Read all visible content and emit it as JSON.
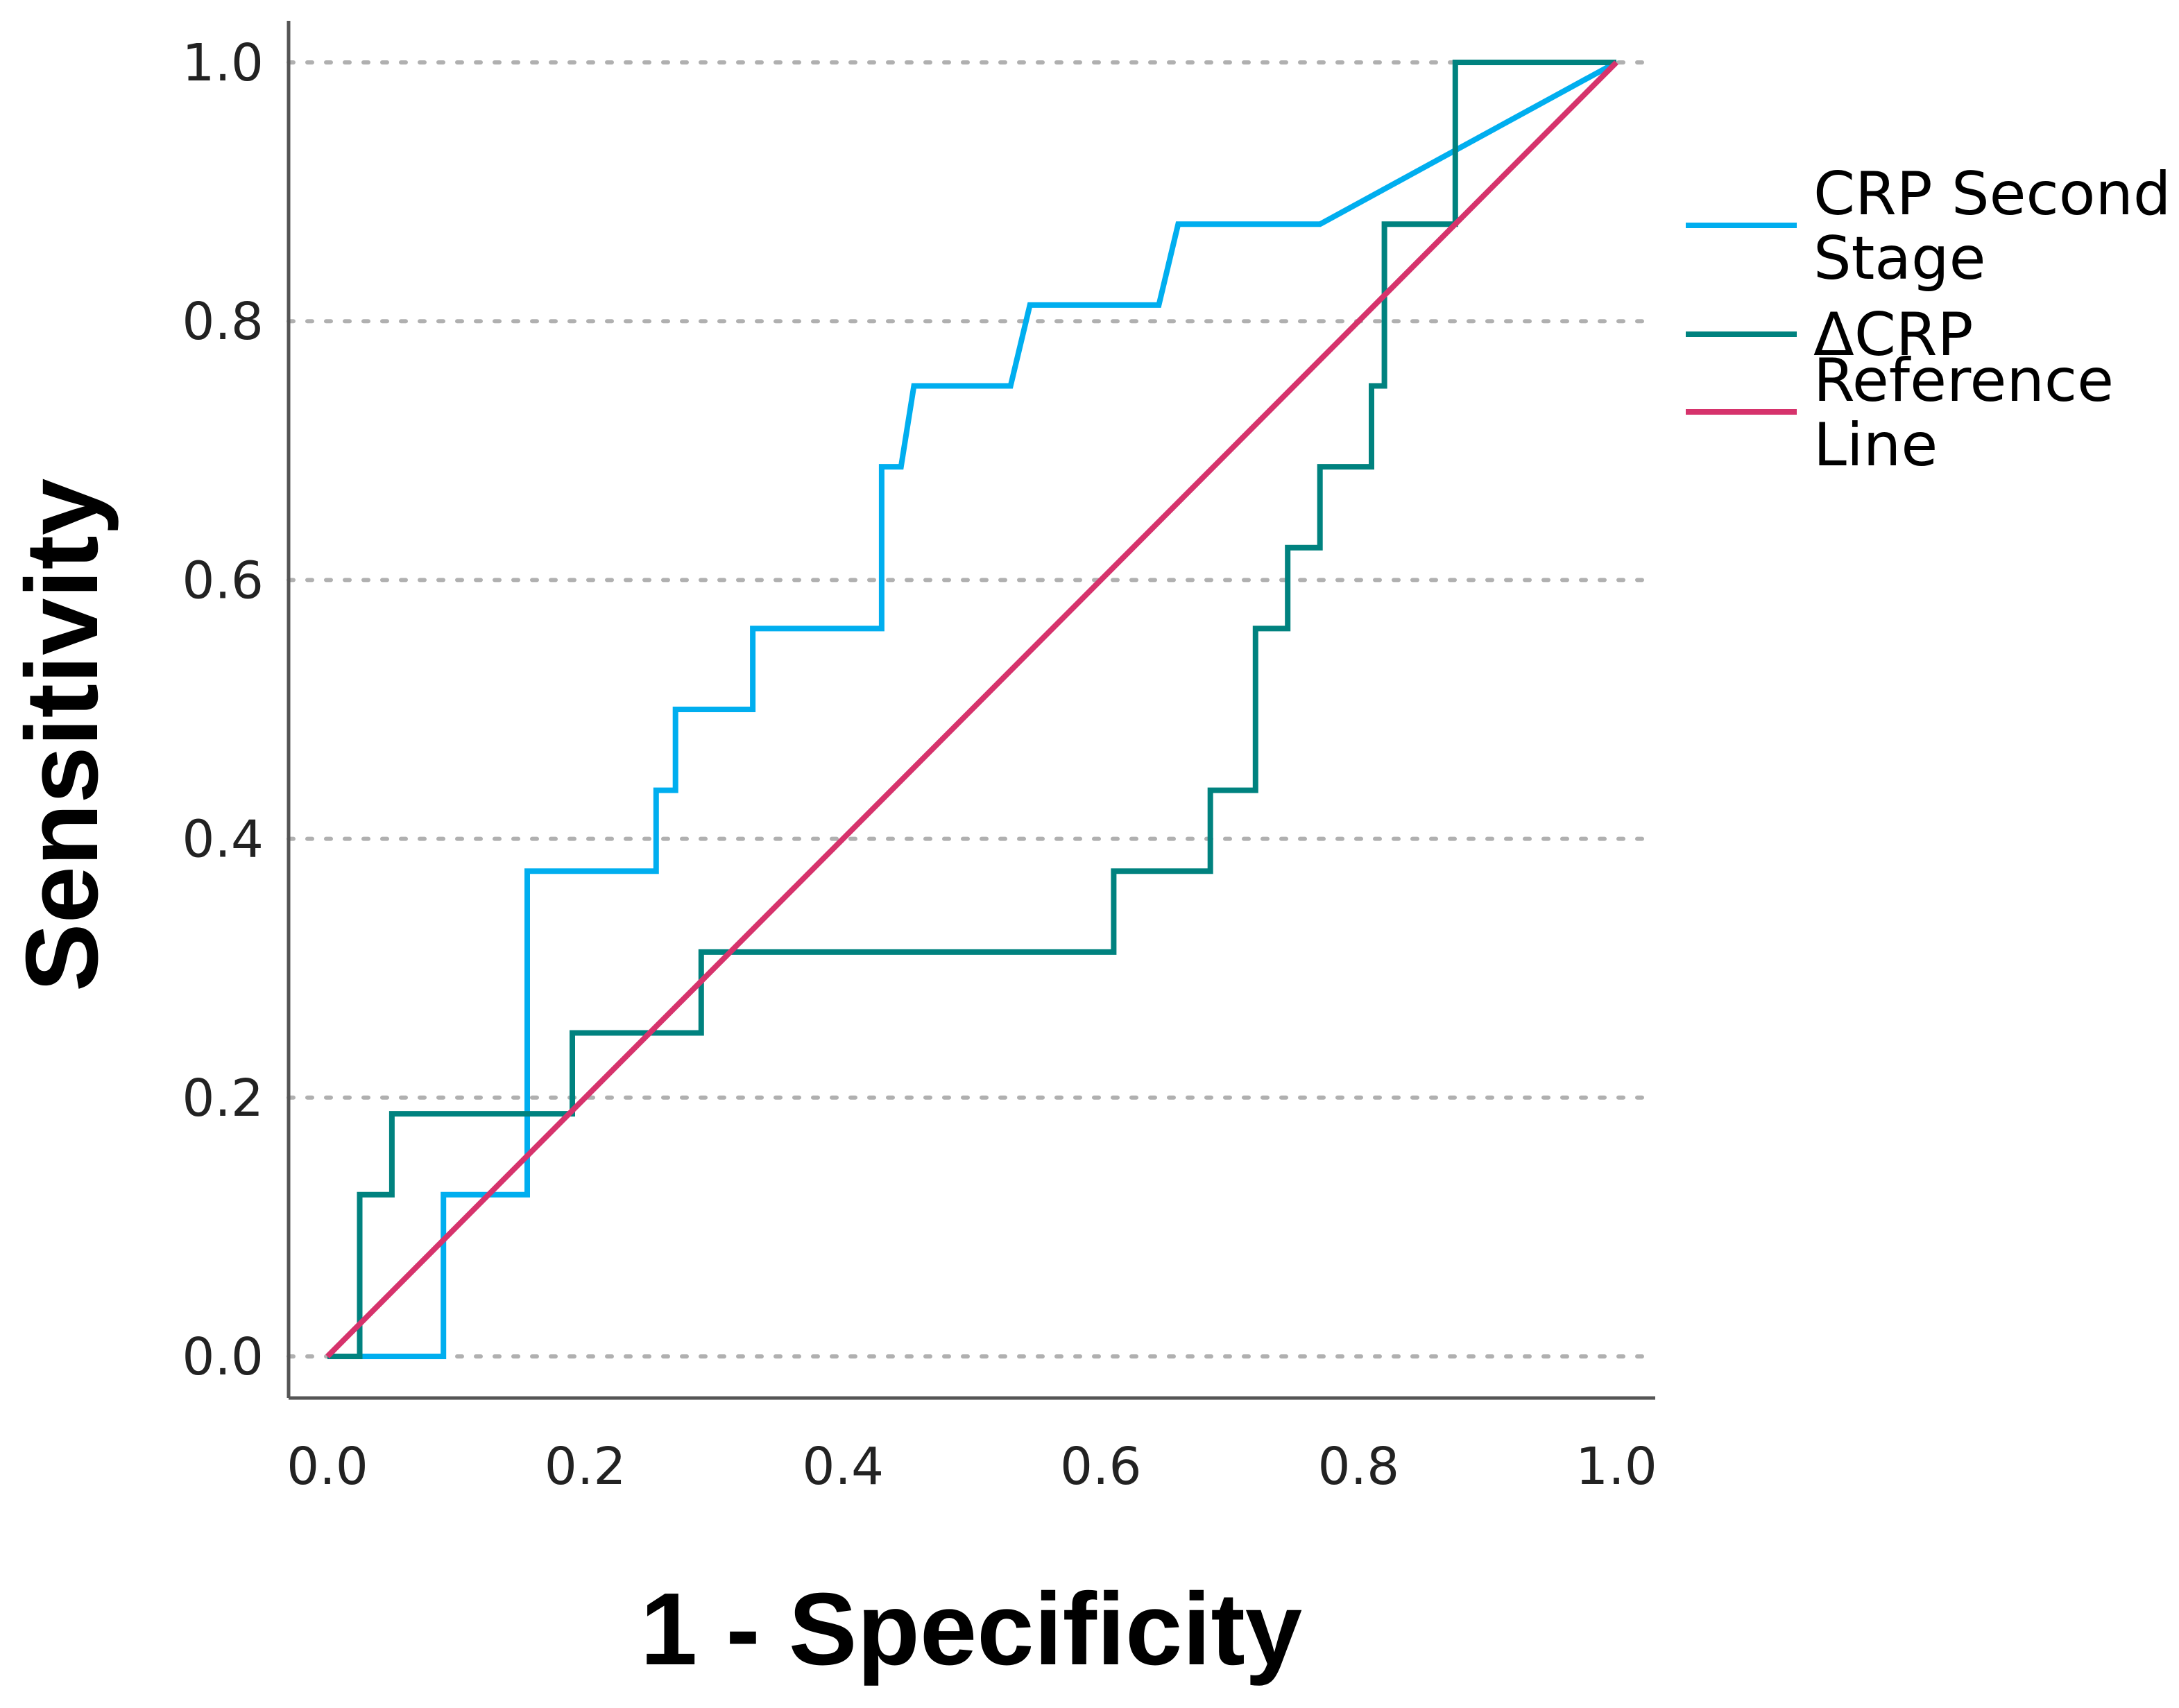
{
  "chart_data": {
    "type": "line",
    "xlabel": "1 - Specificity",
    "ylabel": "Sensitivity",
    "xlim": [
      0.0,
      1.0
    ],
    "ylim": [
      0.0,
      1.0
    ],
    "grid": "horizontal dotted",
    "x_ticks": [
      "0.0",
      "0.2",
      "0.4",
      "0.6",
      "0.8",
      "1.0"
    ],
    "y_ticks": [
      "0.0",
      "0.2",
      "0.4",
      "0.6",
      "0.8",
      "1.0"
    ],
    "legend_position": "right",
    "series": [
      {
        "name": "CRP Second Stage",
        "legend_lines": [
          "CRP Second",
          "Stage"
        ],
        "color": "#00AEEF",
        "points": [
          [
            0.0,
            0.0
          ],
          [
            0.09,
            0.0
          ],
          [
            0.09,
            0.125
          ],
          [
            0.155,
            0.125
          ],
          [
            0.155,
            0.375
          ],
          [
            0.255,
            0.375
          ],
          [
            0.255,
            0.4375
          ],
          [
            0.27,
            0.4375
          ],
          [
            0.27,
            0.5
          ],
          [
            0.33,
            0.5
          ],
          [
            0.33,
            0.5625
          ],
          [
            0.43,
            0.5625
          ],
          [
            0.43,
            0.6875
          ],
          [
            0.445,
            0.6875
          ],
          [
            0.455,
            0.75
          ],
          [
            0.53,
            0.75
          ],
          [
            0.545,
            0.8125
          ],
          [
            0.645,
            0.8125
          ],
          [
            0.66,
            0.875
          ],
          [
            0.77,
            0.875
          ],
          [
            1.0,
            1.0
          ]
        ]
      },
      {
        "name": "ΔCRP",
        "legend_lines": [
          "ΔCRP"
        ],
        "color": "#00827F",
        "points": [
          [
            0.0,
            0.0
          ],
          [
            0.025,
            0.0
          ],
          [
            0.025,
            0.125
          ],
          [
            0.05,
            0.125
          ],
          [
            0.05,
            0.1875
          ],
          [
            0.19,
            0.1875
          ],
          [
            0.19,
            0.25
          ],
          [
            0.29,
            0.25
          ],
          [
            0.29,
            0.3125
          ],
          [
            0.61,
            0.3125
          ],
          [
            0.61,
            0.375
          ],
          [
            0.685,
            0.375
          ],
          [
            0.685,
            0.4375
          ],
          [
            0.72,
            0.4375
          ],
          [
            0.72,
            0.5625
          ],
          [
            0.745,
            0.5625
          ],
          [
            0.745,
            0.625
          ],
          [
            0.77,
            0.625
          ],
          [
            0.77,
            0.6875
          ],
          [
            0.81,
            0.6875
          ],
          [
            0.81,
            0.75
          ],
          [
            0.82,
            0.75
          ],
          [
            0.82,
            0.875
          ],
          [
            0.875,
            0.875
          ],
          [
            0.875,
            1.0
          ],
          [
            1.0,
            1.0
          ]
        ]
      },
      {
        "name": "Reference Line",
        "legend_lines": [
          "Reference",
          "Line"
        ],
        "color": "#D6336C",
        "points": [
          [
            0.0,
            0.0
          ],
          [
            1.0,
            1.0
          ]
        ]
      }
    ],
    "axis_color": "#555555",
    "grid_color": "#B0B0B0"
  }
}
